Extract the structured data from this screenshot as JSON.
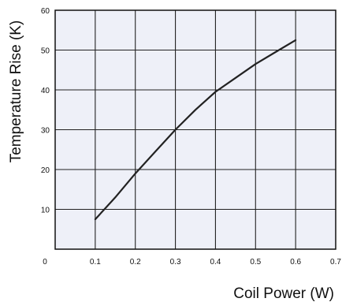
{
  "chart_data": {
    "type": "line",
    "title": "",
    "xlabel": "Coil Power (W)",
    "ylabel": "Temperature Rise (K)",
    "xlim": [
      0,
      0.7
    ],
    "ylim": [
      0,
      60
    ],
    "x_ticks": [
      "0",
      "0.1",
      "0.2",
      "0.3",
      "0.4",
      "0.5",
      "0.6",
      "0.7"
    ],
    "y_ticks": [
      "10",
      "20",
      "30",
      "40",
      "50",
      "60"
    ],
    "grid": true,
    "background": "#eef0f8",
    "line_color": "#222222",
    "series": [
      {
        "x": [
          0.1,
          0.15,
          0.2,
          0.25,
          0.3,
          0.35,
          0.4,
          0.45,
          0.5,
          0.55,
          0.6
        ],
        "values": [
          7.5,
          13,
          19,
          24.5,
          30,
          35,
          39.5,
          43,
          46.5,
          49.5,
          52.5
        ]
      }
    ]
  }
}
